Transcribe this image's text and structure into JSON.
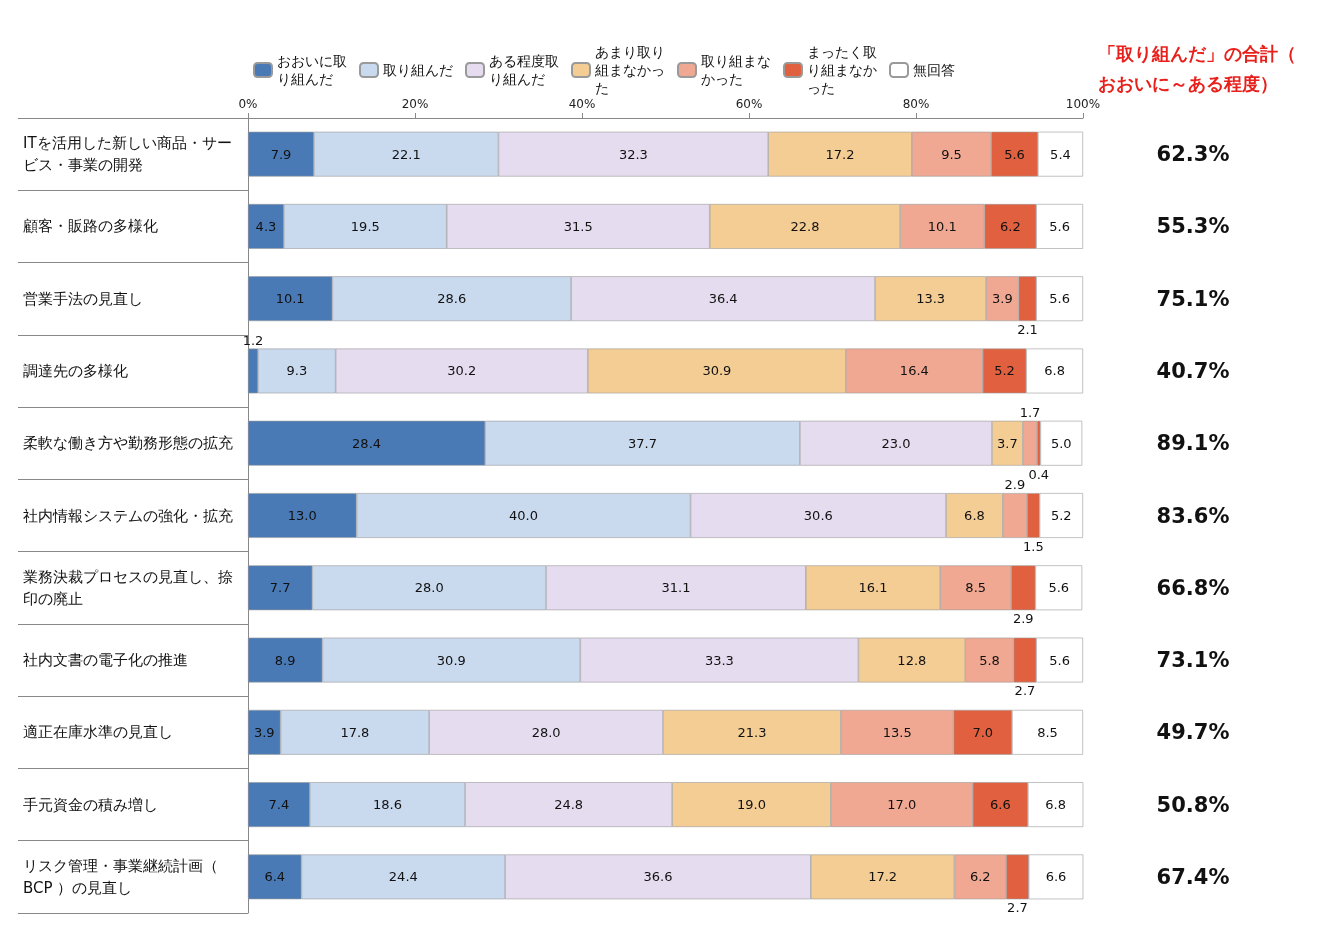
{
  "chart_data": {
    "type": "bar",
    "orientation": "horizontal",
    "stacked": true,
    "legend": "top",
    "grid": false,
    "categories": [
      "ITを活用した新しい商品・サービス・事業の開発",
      "顧客・販路の多様化",
      "営業手法の見直し",
      "調達先の多様化",
      "柔軟な働き方や勤務形態の拡充",
      "社内情報システムの強化・拡充",
      "業務決裁プロセスの見直し、捺印の廃止",
      "社内文書の電子化の推進",
      "適正在庫水準の見直し",
      "手元資金の積み増し",
      "リスク管理・事業継続計画（BCP ）の見直し"
    ],
    "xlim": [
      0,
      100
    ],
    "xticks": [
      {
        "value": 0,
        "label": "0%"
      },
      {
        "value": 20,
        "label": "20%"
      },
      {
        "value": 40,
        "label": "40%"
      },
      {
        "value": 60,
        "label": "60%"
      },
      {
        "value": 80,
        "label": "80%"
      },
      {
        "value": 100,
        "label": "100%"
      }
    ],
    "series": [
      {
        "name": "おおいに取り組んだ",
        "color": "#4a7ab5",
        "values": [
          7.9,
          4.3,
          10.1,
          1.2,
          28.4,
          13.0,
          7.7,
          8.9,
          3.9,
          7.4,
          6.4
        ],
        "value_labels": [
          "7.9",
          "4.3",
          "10.1",
          "1.2",
          "28.4",
          "13.0",
          "7.7",
          "8.9",
          "3.9",
          "7.4",
          "6.4"
        ]
      },
      {
        "name": "取り組んだ",
        "color": "#c9d9ee",
        "values": [
          22.1,
          19.5,
          28.6,
          9.3,
          37.7,
          40.0,
          28.0,
          30.9,
          17.8,
          18.6,
          24.4
        ],
        "value_labels": [
          "22.1",
          "19.5",
          "28.6",
          "9.3",
          "37.7",
          "40.0",
          "28.0",
          "30.9",
          "17.8",
          "18.6",
          "24.4"
        ]
      },
      {
        "name": "ある程度取り組んだ",
        "color": "#e6dcef",
        "values": [
          32.3,
          31.5,
          36.4,
          30.2,
          23.0,
          30.6,
          31.1,
          33.3,
          28.0,
          24.8,
          36.6
        ],
        "value_labels": [
          "32.3",
          "31.5",
          "36.4",
          "30.2",
          "23.0",
          "30.6",
          "31.1",
          "33.3",
          "28.0",
          "24.8",
          "36.6"
        ]
      },
      {
        "name": "あまり取り組まなかった",
        "color": "#f4cd95",
        "values": [
          17.2,
          22.8,
          13.3,
          30.9,
          3.7,
          6.8,
          16.1,
          12.8,
          21.3,
          19.0,
          17.2
        ],
        "value_labels": [
          "17.2",
          "22.8",
          "13.3",
          "30.9",
          "3.7",
          "6.8",
          "16.1",
          "12.8",
          "21.3",
          "19.0",
          "17.2"
        ]
      },
      {
        "name": "取り組まなかった",
        "color": "#f1a892",
        "values": [
          9.5,
          10.1,
          3.9,
          16.4,
          1.7,
          2.9,
          8.5,
          5.8,
          13.5,
          17.0,
          6.2
        ],
        "value_labels": [
          "9.5",
          "10.1",
          "3.9",
          "16.4",
          "1.7",
          "2.9",
          "8.5",
          "5.8",
          "13.5",
          "17.0",
          "6.2"
        ]
      },
      {
        "name": "まったく取り組まなかった",
        "color": "#e0603f",
        "values": [
          5.6,
          6.2,
          2.1,
          5.2,
          0.4,
          1.5,
          2.9,
          2.7,
          7.0,
          6.6,
          2.7
        ],
        "value_labels": [
          "5.6",
          "6.2",
          "2.1",
          "5.2",
          "0.4",
          "1.5",
          "2.9",
          "2.7",
          "7.0",
          "6.6",
          "2.7"
        ]
      },
      {
        "name": "無回答",
        "color": "#ffffff",
        "values": [
          5.4,
          5.6,
          5.6,
          6.8,
          5.0,
          5.2,
          5.6,
          5.6,
          8.5,
          6.8,
          6.6
        ],
        "value_labels": [
          "5.4",
          "5.6",
          "5.6",
          "6.8",
          "5.0",
          "5.2",
          "5.6",
          "5.6",
          "8.5",
          "6.8",
          "6.6"
        ]
      }
    ],
    "annotations": [
      "「取り組んだ」の合計（おおいに～ある程度）",
      "62.3%",
      "55.3%",
      "75.1%",
      "40.7%",
      "89.1%",
      "83.6%",
      "66.8%",
      "73.1%",
      "49.7%",
      "50.8%",
      "67.4%"
    ]
  }
}
